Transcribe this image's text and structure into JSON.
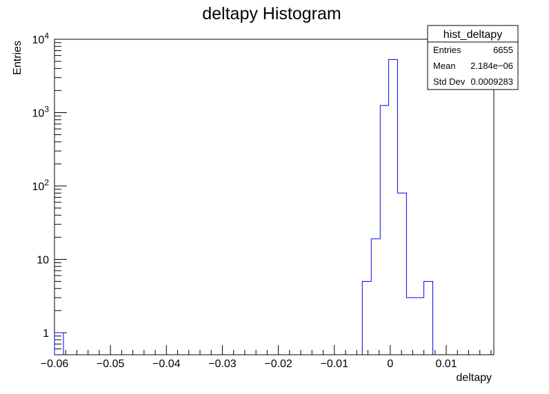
{
  "chart_data": {
    "type": "histogram",
    "title": "deltapy Histogram",
    "xlabel": "deltapy",
    "ylabel": "Entries",
    "xlim": [
      -0.06,
      0.0185
    ],
    "ylim": [
      0.5,
      10000
    ],
    "y_scale": "log",
    "line_color": "#0000ff",
    "bins": [
      {
        "x0": -0.06,
        "x1": -0.0584,
        "count": 1
      },
      {
        "x0": -0.005,
        "x1": -0.0034,
        "count": 5
      },
      {
        "x0": -0.0034,
        "x1": -0.0018,
        "count": 19
      },
      {
        "x0": -0.0018,
        "x1": -0.0003,
        "count": 1250
      },
      {
        "x0": -0.0003,
        "x1": 0.0013,
        "count": 5300
      },
      {
        "x0": 0.0013,
        "x1": 0.0029,
        "count": 80
      },
      {
        "x0": 0.0029,
        "x1": 0.006,
        "count": 3
      },
      {
        "x0": 0.006,
        "x1": 0.0076,
        "count": 5
      }
    ],
    "x_ticks": [
      {
        "value": -0.06,
        "label": "−0.06"
      },
      {
        "value": -0.05,
        "label": "−0.05"
      },
      {
        "value": -0.04,
        "label": "−0.04"
      },
      {
        "value": -0.03,
        "label": "−0.03"
      },
      {
        "value": -0.02,
        "label": "−0.02"
      },
      {
        "value": -0.01,
        "label": "−0.01"
      },
      {
        "value": 0,
        "label": "0"
      },
      {
        "value": 0.01,
        "label": "0.01"
      }
    ],
    "y_ticks": [
      {
        "value": 1,
        "base": "1",
        "exp": ""
      },
      {
        "value": 10,
        "base": "10",
        "exp": ""
      },
      {
        "value": 100,
        "base": "10",
        "exp": "2"
      },
      {
        "value": 1000,
        "base": "10",
        "exp": "3"
      },
      {
        "value": 10000,
        "base": "10",
        "exp": "4"
      }
    ],
    "stats_box": {
      "title": "hist_deltapy",
      "rows": [
        {
          "label": "Entries",
          "value": "6655"
        },
        {
          "label": "Mean",
          "value": "2.184e−06"
        },
        {
          "label": "Std Dev",
          "value": "0.0009283"
        }
      ]
    }
  }
}
